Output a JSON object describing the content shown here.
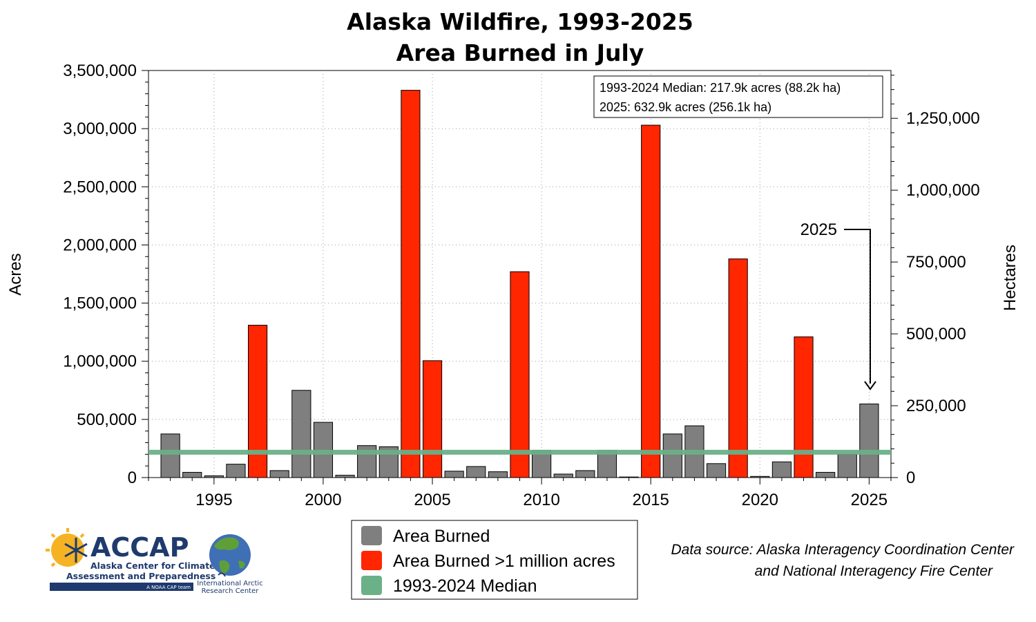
{
  "chart_data": {
    "type": "bar",
    "title": "Alaska Wildfire, 1993-2025",
    "subtitle": "Area Burned in July",
    "ylabel": "Acres",
    "y2label": "Hectares",
    "ylim": [
      0,
      3500000
    ],
    "y2lim": [
      0,
      1416400
    ],
    "xlim": [
      1992,
      2026
    ],
    "x_ticks": [
      1995,
      2000,
      2005,
      2010,
      2015,
      2020,
      2025
    ],
    "y_ticks": [
      {
        "value": 0,
        "label": "0"
      },
      {
        "value": 500000,
        "label": "500,000"
      },
      {
        "value": 1000000,
        "label": "1,000,000"
      },
      {
        "value": 1500000,
        "label": "1,500,000"
      },
      {
        "value": 2000000,
        "label": "2,000,000"
      },
      {
        "value": 2500000,
        "label": "2,500,000"
      },
      {
        "value": 3000000,
        "label": "3,000,000"
      },
      {
        "value": 3500000,
        "label": "3,500,000"
      }
    ],
    "y2_ticks": [
      {
        "value": 0,
        "label": "0"
      },
      {
        "value": 250000,
        "label": "250,000"
      },
      {
        "value": 500000,
        "label": "500,000"
      },
      {
        "value": 750000,
        "label": "750,000"
      },
      {
        "value": 1000000,
        "label": "1,000,000"
      },
      {
        "value": 1250000,
        "label": "1,250,000"
      }
    ],
    "grid": true,
    "years": [
      1993,
      1994,
      1995,
      1996,
      1997,
      1998,
      1999,
      2000,
      2001,
      2002,
      2003,
      2004,
      2005,
      2006,
      2007,
      2008,
      2009,
      2010,
      2011,
      2012,
      2013,
      2014,
      2015,
      2016,
      2017,
      2018,
      2019,
      2020,
      2021,
      2022,
      2023,
      2024,
      2025
    ],
    "values": [
      375000,
      45000,
      15000,
      115000,
      1310000,
      60000,
      750000,
      475000,
      20000,
      275000,
      265000,
      3330000,
      1005000,
      55000,
      95000,
      50000,
      1770000,
      235000,
      30000,
      60000,
      235000,
      5000,
      3030000,
      375000,
      445000,
      120000,
      1880000,
      10000,
      135000,
      1210000,
      45000,
      200000,
      632900
    ],
    "median": 217900,
    "threshold": 1000000,
    "series": [
      {
        "name": "Area Burned",
        "color": "#7f7f7f"
      },
      {
        "name": "Area Burned >1 million acres",
        "color": "#ff2600"
      },
      {
        "name": "1993-2024 Median",
        "color": "#6ab187"
      }
    ],
    "annotations": {
      "median_text": "1993-2024 Median: 217.9k acres (88.2k ha)",
      "current_text": "2025: 632.9k acres (256.1k ha)",
      "arrow_label": "2025"
    },
    "legend_position": "bottom"
  },
  "source": {
    "line1": "Data source: Alaska Interagency Coordination Center",
    "line2": "and National Interagency Fire Center"
  },
  "logos": {
    "accap_name": "ACCAP",
    "accap_line1": "Alaska Center for Climate",
    "accap_line2": "Assessment and Preparedness",
    "accap_tag": "A NOAA CAP team",
    "iarc_line1": "International Arctic",
    "iarc_line2": "Research Center"
  },
  "colors": {
    "gray_bar": "#7f7f7f",
    "red_bar": "#ff2600",
    "median_line": "#6ab187",
    "accap_blue": "#1f3a6e",
    "accap_yellow": "#f5b324"
  }
}
